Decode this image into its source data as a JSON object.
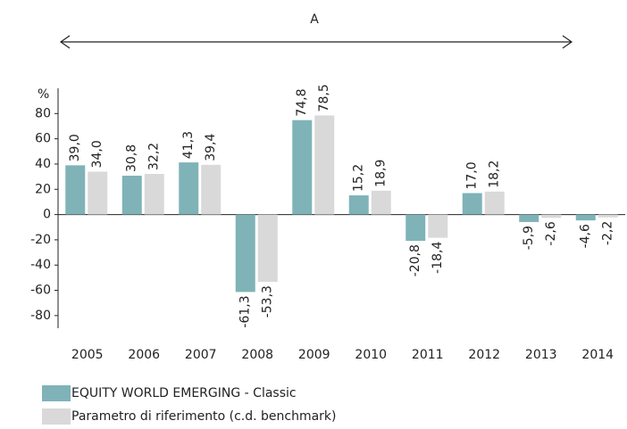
{
  "chart_data": {
    "type": "bar",
    "annotation": "A",
    "y_label": "%",
    "categories": [
      "2005",
      "2006",
      "2007",
      "2008",
      "2009",
      "2010",
      "2011",
      "2012",
      "2013",
      "2014"
    ],
    "series": [
      {
        "name": "EQUITY WORLD EMERGING - Classic",
        "color": "#7fb3b8",
        "values": [
          39.0,
          30.8,
          41.3,
          -61.3,
          74.8,
          15.2,
          -20.8,
          17.0,
          -5.9,
          -4.6
        ],
        "value_labels": [
          "39,0",
          "30,8",
          "41,3",
          "-61,3",
          "74,8",
          "15,2",
          "-20,8",
          "17,0",
          "-5,9",
          "-4,6"
        ]
      },
      {
        "name": "Parametro di riferimento (c.d. benchmark)",
        "color": "#d9d9d9",
        "values": [
          34.0,
          32.2,
          39.4,
          -53.3,
          78.5,
          18.9,
          -18.4,
          18.2,
          -2.6,
          -2.2
        ],
        "value_labels": [
          "34,0",
          "32,2",
          "39,4",
          "-53,3",
          "78,5",
          "18,9",
          "-18,4",
          "18,2",
          "-2,6",
          "-2,2"
        ]
      }
    ],
    "ylim": [
      -90,
      100
    ],
    "yticks": [
      80,
      60,
      40,
      20,
      0,
      -20,
      -40,
      -60,
      -80
    ]
  }
}
